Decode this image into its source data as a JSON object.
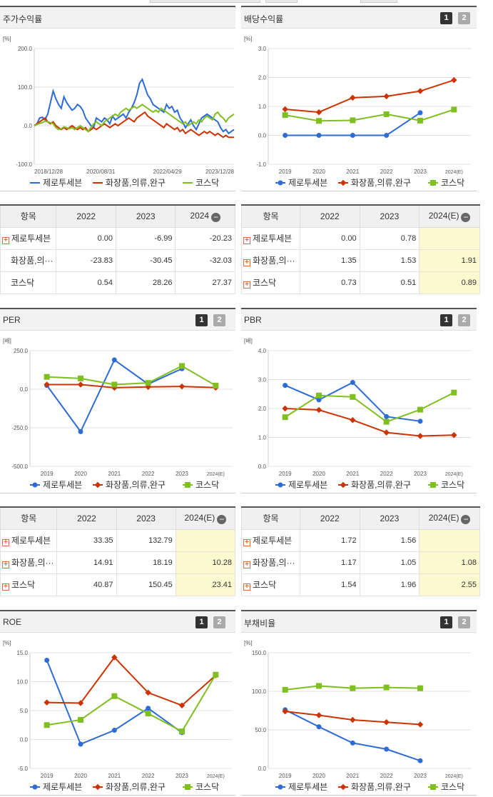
{
  "panels": [
    {
      "title": "주가수익률",
      "buttons": false
    },
    {
      "title": "배당수익률",
      "buttons": true
    },
    {
      "title": "PER",
      "buttons": true
    },
    {
      "title": "PBR",
      "buttons": true
    },
    {
      "title": "ROE",
      "buttons": true
    },
    {
      "title": "부채비율",
      "buttons": true
    }
  ],
  "buttons": {
    "b1": "1",
    "b2": "2"
  },
  "legend": [
    "제로투세븐",
    "화장품,의류,완구",
    "코스닥"
  ],
  "colors": {
    "s1": "#2d6bd6",
    "s2": "#cc3300",
    "s3": "#7fbf1f"
  },
  "chart_data": [
    {
      "type": "line",
      "title": "주가수익률",
      "ylabel": "[%]",
      "ylim": [
        -100,
        200
      ],
      "yticks": [
        "200.0",
        "100.0",
        "0.0",
        "-100.0"
      ],
      "xticks": [
        "2018/12/28",
        "2020/08/31",
        "2022/04/29",
        "2023/12/28"
      ],
      "series": [
        {
          "name": "제로투세븐",
          "values": [
            0,
            5,
            20,
            22,
            15,
            30,
            60,
            90,
            70,
            55,
            45,
            75,
            60,
            50,
            40,
            45,
            55,
            50,
            40,
            20,
            10,
            0,
            -5,
            20,
            15,
            10,
            20,
            15,
            5,
            25,
            15,
            20,
            25,
            30,
            20,
            35,
            45,
            60,
            80,
            110,
            120,
            100,
            80,
            70,
            55,
            50,
            45,
            40,
            35,
            55,
            45,
            50,
            35,
            40,
            20,
            10,
            -5,
            5,
            15,
            0,
            -10,
            5,
            20,
            25,
            30,
            25,
            20,
            15,
            10,
            -5,
            -15,
            -10,
            -20,
            -15,
            -10
          ]
        },
        {
          "name": "화장품,의류,완구",
          "values": [
            0,
            5,
            10,
            15,
            20,
            10,
            5,
            10,
            0,
            -5,
            -10,
            -5,
            -10,
            -5,
            0,
            -5,
            -10,
            -5,
            -10,
            -5,
            -15,
            -10,
            -5,
            -10,
            -5,
            0,
            5,
            0,
            -5,
            0,
            5,
            0,
            5,
            10,
            15,
            20,
            15,
            10,
            20,
            25,
            30,
            35,
            25,
            20,
            15,
            10,
            5,
            0,
            -5,
            5,
            0,
            -5,
            -10,
            -5,
            -15,
            -10,
            -20,
            -15,
            -10,
            -15,
            -20,
            -25,
            -20,
            -15,
            -20,
            -15,
            -20,
            -25,
            -20,
            -25,
            -30,
            -25,
            -30,
            -30,
            -30
          ]
        },
        {
          "name": "코스닥",
          "values": [
            0,
            3,
            6,
            8,
            12,
            10,
            8,
            5,
            -5,
            -10,
            -8,
            -3,
            -5,
            -8,
            -5,
            -10,
            -5,
            0,
            -5,
            -10,
            -15,
            -5,
            5,
            10,
            5,
            0,
            10,
            15,
            20,
            25,
            30,
            25,
            35,
            40,
            45,
            40,
            45,
            50,
            45,
            50,
            55,
            50,
            45,
            40,
            35,
            40,
            35,
            45,
            40,
            35,
            30,
            25,
            20,
            15,
            10,
            5,
            10,
            0,
            5,
            10,
            5,
            15,
            10,
            20,
            25,
            20,
            15,
            30,
            35,
            25,
            20,
            10,
            20,
            25,
            30
          ]
        }
      ]
    },
    {
      "type": "line",
      "title": "배당수익률",
      "ylabel": "[%]",
      "ylim": [
        -1,
        3
      ],
      "yticks": [
        "3.0",
        "2.0",
        "1.0",
        "0.0",
        "-1.0"
      ],
      "categories": [
        "2019",
        "2020",
        "2021",
        "2022",
        "2023",
        "2024(E)"
      ],
      "series": [
        {
          "name": "제로투세븐",
          "values": [
            0,
            0,
            0,
            0,
            0.78,
            null
          ]
        },
        {
          "name": "화장품,의류,완구",
          "values": [
            0.9,
            0.8,
            1.3,
            1.35,
            1.53,
            1.91
          ]
        },
        {
          "name": "코스닥",
          "values": [
            0.7,
            0.5,
            0.52,
            0.73,
            0.51,
            0.89
          ]
        }
      ]
    },
    {
      "type": "line",
      "title": "PER",
      "ylabel": "[배]",
      "ylim": [
        -500,
        250
      ],
      "yticks": [
        "250.0",
        "0.0",
        "-250.0",
        "-500.0"
      ],
      "categories": [
        "2019",
        "2020",
        "2021",
        "2022",
        "2023",
        "2024(E)"
      ],
      "series": [
        {
          "name": "제로투세븐",
          "values": [
            25,
            -275,
            190,
            33.35,
            132.79,
            null
          ]
        },
        {
          "name": "화장품,의류,완구",
          "values": [
            30,
            30,
            10,
            14.91,
            18.19,
            10.28
          ]
        },
        {
          "name": "코스닥",
          "values": [
            80,
            70,
            30,
            40.87,
            150.45,
            23.41
          ]
        }
      ]
    },
    {
      "type": "line",
      "title": "PBR",
      "ylabel": "[배]",
      "ylim": [
        0,
        4
      ],
      "yticks": [
        "4.0",
        "3.0",
        "2.0",
        "1.0",
        "0.0"
      ],
      "categories": [
        "2019",
        "2020",
        "2021",
        "2022",
        "2023",
        "2024(E)"
      ],
      "series": [
        {
          "name": "제로투세븐",
          "values": [
            2.8,
            2.3,
            2.9,
            1.72,
            1.56,
            null
          ]
        },
        {
          "name": "화장품,의류,완구",
          "values": [
            2.0,
            1.95,
            1.6,
            1.17,
            1.05,
            1.08
          ]
        },
        {
          "name": "코스닥",
          "values": [
            1.7,
            2.45,
            2.4,
            1.54,
            1.96,
            2.55
          ]
        }
      ]
    },
    {
      "type": "line",
      "title": "ROE",
      "ylabel": "[%]",
      "ylim": [
        -5,
        15
      ],
      "yticks": [
        "15.0",
        "10.0",
        "5.0",
        "0.0",
        "-5.0"
      ],
      "categories": [
        "2019",
        "2020",
        "2021",
        "2022",
        "2023",
        "2024(E)"
      ],
      "series": [
        {
          "name": "제로투세븐",
          "values": [
            13.7,
            -0.8,
            1.6,
            5.4,
            1.2,
            null
          ]
        },
        {
          "name": "화장품,의류,완구",
          "values": [
            6.4,
            6.3,
            14.2,
            8.1,
            5.9,
            11.1
          ]
        },
        {
          "name": "코스닥",
          "values": [
            2.5,
            3.4,
            7.5,
            4.5,
            1.4,
            11.2
          ]
        }
      ]
    },
    {
      "type": "line",
      "title": "부채비율",
      "ylabel": "[%]",
      "ylim": [
        0,
        150
      ],
      "yticks": [
        "150.0",
        "100.0",
        "50.0",
        "0.0"
      ],
      "categories": [
        "2019",
        "2020",
        "2021",
        "2022",
        "2023",
        "2024(E)"
      ],
      "series": [
        {
          "name": "제로투세븐",
          "values": [
            76,
            54,
            33,
            25,
            10,
            null
          ]
        },
        {
          "name": "화장품,의류,완구",
          "values": [
            74,
            69,
            63,
            60,
            57,
            null
          ]
        },
        {
          "name": "코스닥",
          "values": [
            102,
            107,
            104,
            105,
            104,
            null
          ]
        }
      ]
    }
  ],
  "tables": [
    {
      "headers": [
        "항목",
        "2022",
        "2023",
        "2024"
      ],
      "minus_on_last": true,
      "rows": [
        {
          "label": "제로투세븐",
          "plus": true,
          "cells": [
            "0.00",
            "-6.99",
            "-20.23"
          ]
        },
        {
          "label": "화장품,의···",
          "plus": false,
          "cells": [
            "-23.83",
            "-30.45",
            "-32.03"
          ]
        },
        {
          "label": "코스닥",
          "plus": false,
          "cells": [
            "0.54",
            "28.26",
            "27.37"
          ]
        }
      ]
    },
    {
      "headers": [
        "항목",
        "2022",
        "2023",
        "2024(E)"
      ],
      "minus_on_last": true,
      "rows": [
        {
          "label": "제로투세븐",
          "plus": true,
          "cells": [
            "0.00",
            "0.78",
            ""
          ]
        },
        {
          "label": "화장품,의···",
          "plus": true,
          "cells": [
            "1.35",
            "1.53",
            "1.91"
          ]
        },
        {
          "label": "코스닥",
          "plus": true,
          "cells": [
            "0.73",
            "0.51",
            "0.89"
          ]
        }
      ]
    },
    {
      "headers": [
        "항목",
        "2022",
        "2023",
        "2024(E)"
      ],
      "minus_on_last": true,
      "rows": [
        {
          "label": "제로투세븐",
          "plus": true,
          "cells": [
            "33.35",
            "132.79",
            ""
          ]
        },
        {
          "label": "화장품,의···",
          "plus": true,
          "cells": [
            "14.91",
            "18.19",
            "10.28"
          ]
        },
        {
          "label": "코스닥",
          "plus": true,
          "cells": [
            "40.87",
            "150.45",
            "23.41"
          ]
        }
      ]
    },
    {
      "headers": [
        "항목",
        "2022",
        "2023",
        "2024(E)"
      ],
      "minus_on_last": true,
      "rows": [
        {
          "label": "제로투세븐",
          "plus": true,
          "cells": [
            "1.72",
            "1.56",
            ""
          ]
        },
        {
          "label": "화장품,의···",
          "plus": true,
          "cells": [
            "1.17",
            "1.05",
            "1.08"
          ]
        },
        {
          "label": "코스닥",
          "plus": true,
          "cells": [
            "1.54",
            "1.96",
            "2.55"
          ]
        }
      ]
    }
  ]
}
